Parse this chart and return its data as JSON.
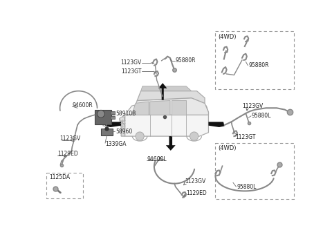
{
  "bg_color": "#ffffff",
  "fig_width": 4.8,
  "fig_height": 3.27,
  "dpi": 100,
  "line_color": "#666666",
  "thick_line_color": "#111111",
  "wire_color": "#888888",
  "component_color": "#777777",
  "text_color": "#222222",
  "box_border_color": "#999999",
  "labels": {
    "top_gv": "1123GV",
    "top_gt": "1123GT",
    "top_part": "95880R",
    "left_harness": "94600R",
    "left_comp1": "58910B",
    "left_comp2": "58960",
    "left_gv": "1123GV",
    "left_ed": "1129ED",
    "left_ga": "1339GA",
    "right_gv": "1123GV",
    "right_part": "95880L",
    "right_gt": "1123GT",
    "bot_harness": "94600L",
    "bot_gv": "1123GV",
    "bot_ed": "1129ED",
    "box_legend": "1125DA",
    "box_tr_title": "(4WD)",
    "box_tr_part": "95880R",
    "box_br_title": "(4WD)",
    "box_br_part": "95880L"
  },
  "car_color": "#aaaaaa",
  "car_fill": "#f5f5f5",
  "arrow_color": "#111111"
}
